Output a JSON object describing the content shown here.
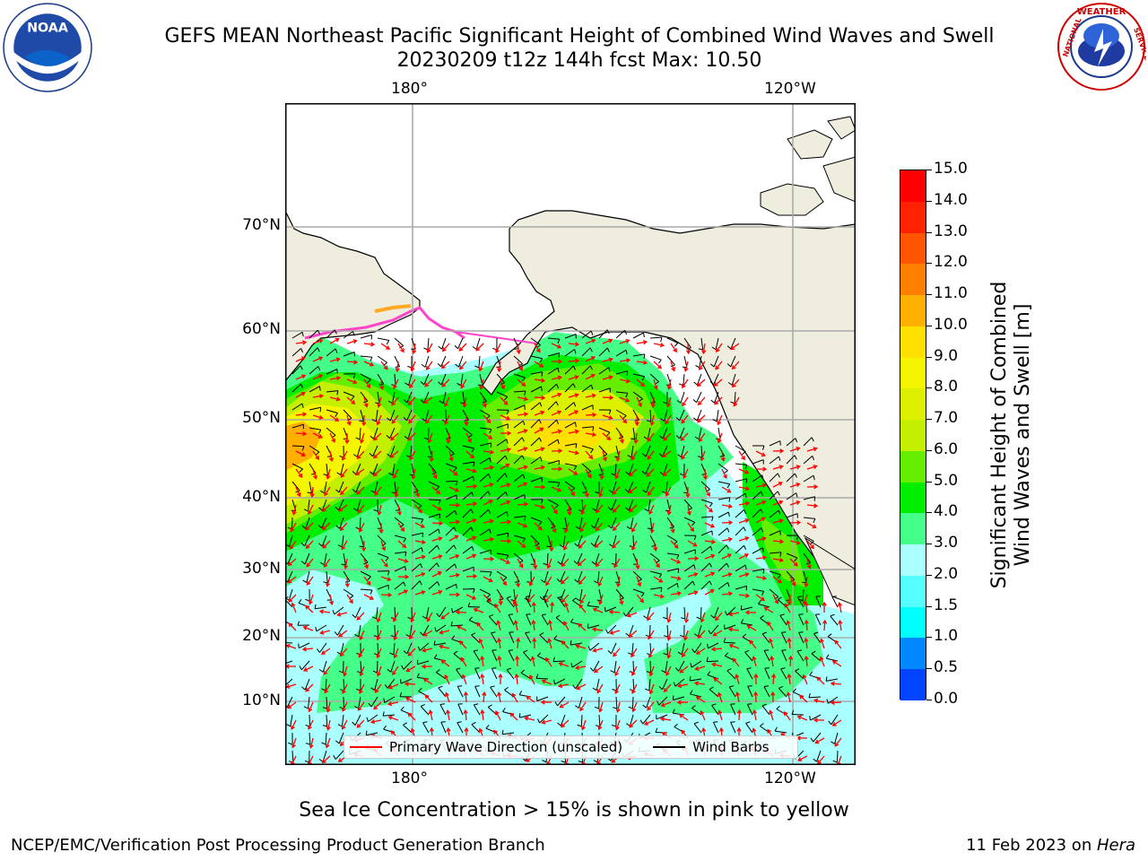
{
  "title": {
    "line1": "GEFS MEAN Northeast Pacific Significant Height of Combined Wind Waves and Swell",
    "line2": "20230209 t12z 144h fcst   Max: 10.50"
  },
  "logos": {
    "left": "NOAA",
    "right": "NATIONAL WEATHER SERVICE"
  },
  "map": {
    "top_lon_labels": [
      "180°",
      "120°W"
    ],
    "bottom_lon_labels": [
      "180°",
      "120°W"
    ],
    "lat_labels": [
      "70°N",
      "60°N",
      "50°N",
      "40°N",
      "30°N",
      "20°N",
      "10°N"
    ],
    "land_color": "#efedde",
    "ocean_color": "#ffffff"
  },
  "colorbar": {
    "ticks": [
      "15.0",
      "14.0",
      "13.0",
      "12.0",
      "11.0",
      "10.0",
      "9.0",
      "8.0",
      "7.0",
      "6.0",
      "5.0",
      "4.0",
      "3.0",
      "2.0",
      "1.5",
      "1.0",
      "0.5",
      "0.0"
    ],
    "colors": [
      "#ff0000",
      "#ff2200",
      "#ff5500",
      "#ff8000",
      "#ffb000",
      "#ffe000",
      "#f5f500",
      "#ddf000",
      "#c4f000",
      "#66ee00",
      "#00ee00",
      "#44ff88",
      "#aaffff",
      "#55ffff",
      "#00ffff",
      "#0088ff",
      "#0044ff",
      "#0000ff"
    ],
    "label_line1": "Significant Height of Combined",
    "label_line2": "Wind Waves and Swell [m]"
  },
  "legend": {
    "wave_dir": "Primary Wave Direction (unscaled)",
    "wave_dir_color": "#ff0000",
    "wind_barbs": "Wind Barbs",
    "wind_barbs_color": "#000000"
  },
  "caption": "Sea Ice Concentration > 15% is shown in pink to yellow",
  "footer": {
    "left": "NCEP/EMC/Verification Post Processing Product Generation Branch",
    "date": "11 Feb 2023 on ",
    "machine": "Hera"
  }
}
